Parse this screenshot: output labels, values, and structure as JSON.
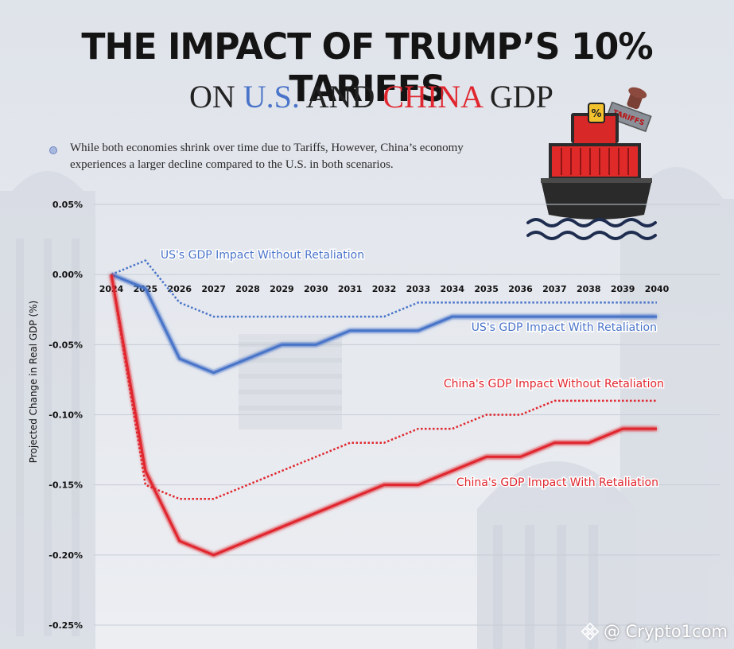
{
  "header": {
    "title": "THE IMPACT OF TRUMP’S 10% TARIFFS",
    "subtitle_prefix": "ON ",
    "subtitle_us": "U.S.",
    "subtitle_and": " AND ",
    "subtitle_china": "CHINA",
    "subtitle_suffix": " GDP"
  },
  "note": "While both economies shrink over time due to Tariffs, However, China’s economy experiences a larger decline compared to the U.S. in both scenarios.",
  "stamp_text": "TARIFFS",
  "ship_badge": "%",
  "watermark": "@ Crypto1com",
  "colors": {
    "us": "#4a74c9",
    "china": "#e0262e",
    "title": "#141414"
  },
  "chart_data": {
    "type": "line",
    "title": "THE IMPACT OF TRUMP’S 10% TARIFFS ON U.S. AND CHINA GDP",
    "xlabel": "",
    "ylabel": "Projected Change in Real GDP (%)",
    "ylim": [
      -0.25,
      0.05
    ],
    "yticks": [
      0.05,
      0.0,
      -0.05,
      -0.1,
      -0.15,
      -0.2,
      -0.25
    ],
    "ytick_labels": [
      "0.05%",
      "0.00%",
      "-0.05%",
      "-0.10%",
      "-0.15%",
      "-0.20%",
      "-0.25%"
    ],
    "x": [
      "2024",
      "2025",
      "2026",
      "2027",
      "2028",
      "2029",
      "2030",
      "2031",
      "2032",
      "2033",
      "2034",
      "2035",
      "2036",
      "2037",
      "2038",
      "2039",
      "2040"
    ],
    "grid": true,
    "series": [
      {
        "name": "US's GDP Impact Without Retaliation",
        "style": "dotted",
        "color": "#4a74c9",
        "values": [
          0.0,
          0.01,
          -0.02,
          -0.03,
          -0.03,
          -0.03,
          -0.03,
          -0.03,
          -0.03,
          -0.02,
          -0.02,
          -0.02,
          -0.02,
          -0.02,
          -0.02,
          -0.02,
          -0.02
        ]
      },
      {
        "name": "US's GDP Impact With Retaliation",
        "style": "solid",
        "color": "#4a74c9",
        "values": [
          0.0,
          -0.01,
          -0.06,
          -0.07,
          -0.06,
          -0.05,
          -0.05,
          -0.04,
          -0.04,
          -0.04,
          -0.03,
          -0.03,
          -0.03,
          -0.03,
          -0.03,
          -0.03,
          -0.03
        ]
      },
      {
        "name": "China's GDP Impact Without Retaliation",
        "style": "dotted",
        "color": "#e0262e",
        "values": [
          0.0,
          -0.15,
          -0.16,
          -0.16,
          -0.15,
          -0.14,
          -0.13,
          -0.12,
          -0.12,
          -0.11,
          -0.11,
          -0.1,
          -0.1,
          -0.09,
          -0.09,
          -0.09,
          -0.09
        ]
      },
      {
        "name": "China's GDP Impact With Retaliation",
        "style": "solid",
        "color": "#e0262e",
        "values": [
          0.0,
          -0.14,
          -0.19,
          -0.2,
          -0.19,
          -0.18,
          -0.17,
          -0.16,
          -0.15,
          -0.15,
          -0.14,
          -0.13,
          -0.13,
          -0.12,
          -0.12,
          -0.11,
          -0.11
        ]
      }
    ]
  }
}
